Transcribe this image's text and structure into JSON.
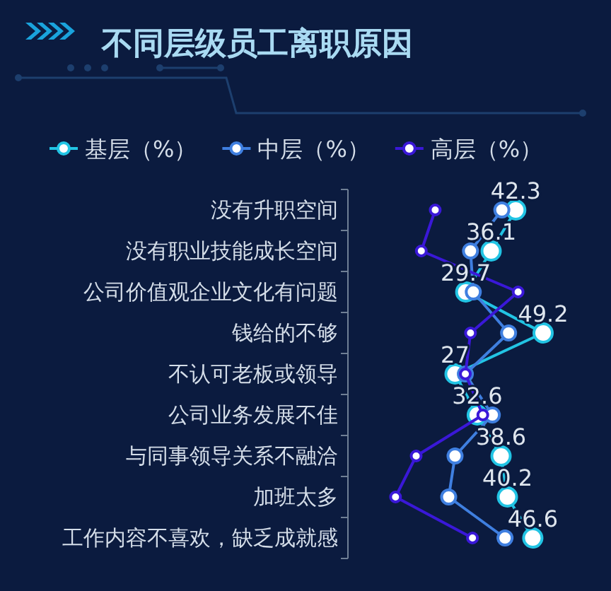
{
  "chart_data": {
    "type": "line",
    "orientation": "horizontal",
    "title": "不同层级员工离职原因",
    "categories": [
      "没有升职空间",
      "没有职业技能成长空间",
      "公司价值观企业文化有问题",
      "钱给的不够",
      "不认可老板或领导",
      "公司业务发展不佳",
      "与同事领导关系不融洽",
      "加班太多",
      "工作内容不喜欢，缺乏成就感"
    ],
    "series": [
      {
        "name": "基层（%）",
        "color": "#22c4e4",
        "values": [
          42.3,
          36.1,
          29.7,
          49.2,
          27,
          32.6,
          38.6,
          40.2,
          46.6
        ],
        "value_labels": [
          "42.3",
          "36.1",
          "29.7",
          "49.2",
          "27",
          "32.6",
          "38.6",
          "40.2",
          "46.6"
        ]
      },
      {
        "name": "中层（%）",
        "color": "#3f7fe0",
        "values": [
          38.8,
          30.9,
          31.6,
          40.5,
          29.6,
          36.4,
          27,
          25.4,
          39.6
        ]
      },
      {
        "name": "高层（%）",
        "color": "#3a18d8",
        "values": [
          22,
          18.5,
          42.9,
          30.9,
          29.6,
          34,
          17.2,
          12,
          31.4
        ]
      }
    ],
    "marker": "circle",
    "line_style": "solid",
    "legend": "top",
    "tick_labels": "y"
  }
}
